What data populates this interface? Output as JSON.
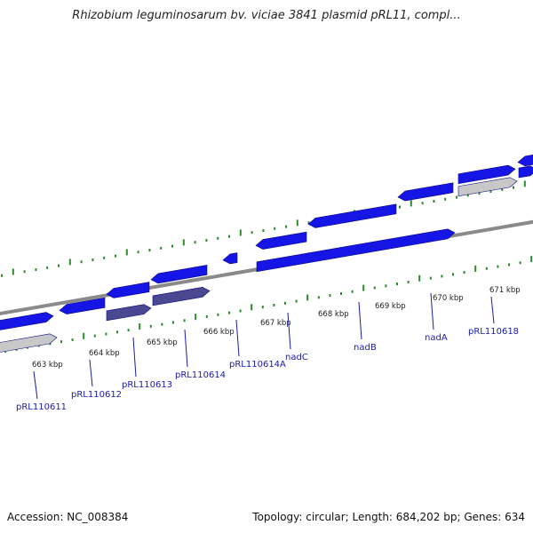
{
  "title": "Rhizobium leguminosarum bv. viciae 3841 plasmid pRL11, compl...",
  "footer": {
    "accession": "Accession: NC_008384",
    "summary": "Topology: circular; Length: 684,202 bp; Genes: 634"
  },
  "colors": {
    "gene_forward": "#1515e6",
    "gene_reverse": "#1515e6",
    "gene_highlight": "#4a4890",
    "gene_grey": "#c8c8c8",
    "backbone": "#8a8a8a",
    "gc_tick": "#2a8a2a",
    "label": "#1a1ab0"
  },
  "scale_labels": [
    "663 kbp",
    "664 kbp",
    "665 kbp",
    "666 kbp",
    "667 kbp",
    "668 kbp",
    "669 kbp",
    "670 kbp",
    "671 kbp"
  ],
  "gene_labels": [
    "pRL110611",
    "pRL110612",
    "pRL110613",
    "pRL110614",
    "pRL110614A",
    "nadC",
    "nadB",
    "nadA",
    "pRL110618"
  ]
}
